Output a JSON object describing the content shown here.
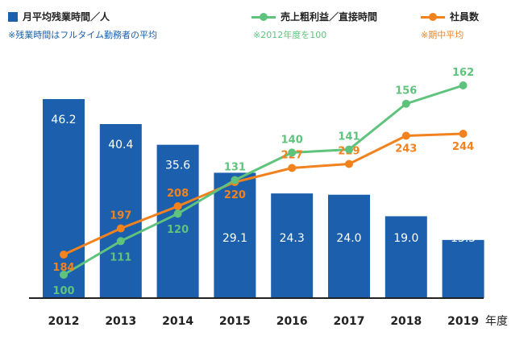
{
  "legend": {
    "bars_label": "月平均残業時間／人",
    "bars_note": "※残業時間はフルタイム勤務者の平均",
    "sales_label": "売上粗利益／直接時間",
    "sales_note": "※2012年度を100",
    "emp_label": "社員数",
    "emp_note": "※期中平均"
  },
  "colors": {
    "bar": "#1b5fad",
    "sales": "#5fc37d",
    "employees": "#f2821e",
    "bar_note": "#1b5fad",
    "sales_note": "#5fc37d",
    "emp_note": "#f2821e"
  },
  "chart_data": {
    "type": "bar",
    "categories": [
      "2012",
      "2013",
      "2014",
      "2015",
      "2016",
      "2017",
      "2018",
      "2019"
    ],
    "xlabel": "年度",
    "series": [
      {
        "name": "月平均残業時間／人",
        "type": "bar",
        "values": [
          46.2,
          40.4,
          35.6,
          29.1,
          24.3,
          24.0,
          19.0,
          13.5
        ],
        "labels": [
          "46.2",
          "40.4",
          "35.6",
          "29.1",
          "24.3",
          "24.0",
          "19.0",
          "13.5"
        ]
      },
      {
        "name": "売上粗利益／直接時間",
        "type": "line",
        "values": [
          100,
          111,
          120,
          131,
          140,
          141,
          156,
          162
        ]
      },
      {
        "name": "社員数",
        "type": "line",
        "values": [
          184,
          197,
          208,
          220,
          227,
          229,
          243,
          244
        ]
      }
    ]
  }
}
